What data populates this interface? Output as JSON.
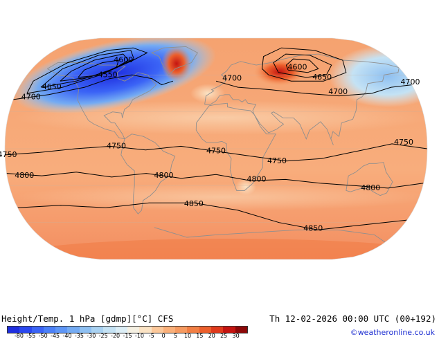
{
  "map": {
    "contour_labels": [
      {
        "text": "4600",
        "lon": -95,
        "lat": 72
      },
      {
        "text": "4550",
        "lon": -103,
        "lat": 60
      },
      {
        "text": "4650",
        "lon": -150,
        "lat": 50
      },
      {
        "text": "4700",
        "lon": -165,
        "lat": 42
      },
      {
        "text": "4600",
        "lon": 80,
        "lat": 66
      },
      {
        "text": "4650",
        "lon": 100,
        "lat": 58
      },
      {
        "text": "4700",
        "lon": 15,
        "lat": 57
      },
      {
        "text": "4700",
        "lon": 180,
        "lat": 54
      },
      {
        "text": "4700",
        "lon": 110,
        "lat": 46
      },
      {
        "text": "4750",
        "lon": -178,
        "lat": -5
      },
      {
        "text": "4750",
        "lon": -85,
        "lat": 2
      },
      {
        "text": "4750",
        "lon": 0,
        "lat": -2
      },
      {
        "text": "4750",
        "lon": 52,
        "lat": -10
      },
      {
        "text": "4750",
        "lon": 160,
        "lat": 5
      },
      {
        "text": "4800",
        "lon": -165,
        "lat": -22
      },
      {
        "text": "4800",
        "lon": -45,
        "lat": -22
      },
      {
        "text": "4800",
        "lon": 35,
        "lat": -25
      },
      {
        "text": "4800",
        "lon": 135,
        "lat": -32
      },
      {
        "text": "4850",
        "lon": -20,
        "lat": -45
      },
      {
        "text": "4850",
        "lon": 95,
        "lat": -65
      }
    ]
  },
  "footer": {
    "title": "Height/Temp. 1 hPa [gdmp][°C] CFS",
    "datetime": "Th 12-02-2026 00:00 UTC (00+192)",
    "credit": "©weatheronline.co.uk"
  },
  "colorbar": {
    "ticks": [
      "-80",
      "-55",
      "-50",
      "-45",
      "-40",
      "-35",
      "-30",
      "-25",
      "-20",
      "-15",
      "-10",
      "-5",
      "0",
      "5",
      "10",
      "15",
      "20",
      "25",
      "30"
    ],
    "colors": [
      "#1f2fe0",
      "#2a48f0",
      "#3b64f6",
      "#4b80f8",
      "#5e96f6",
      "#74abf3",
      "#8ec0f2",
      "#a9d2f2",
      "#c4e2f4",
      "#dceef6",
      "#f5f0e2",
      "#fbe3c4",
      "#fcc89a",
      "#fab07a",
      "#f69a60",
      "#f27f44",
      "#ec5f2c",
      "#e03a1c",
      "#c41410",
      "#8c0808"
    ]
  }
}
